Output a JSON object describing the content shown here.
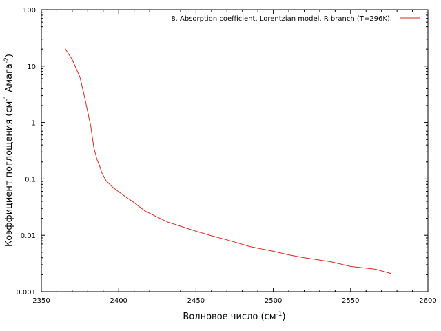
{
  "chart_data": {
    "type": "line",
    "title": "",
    "xlabel": "Волновое число (см",
    "xlabel_sup": "-1",
    "xlabel_end": ")",
    "ylabel": "Коэффициент поглощения (см",
    "ylabel_sup1": "-1",
    "ylabel_mid": " Амага",
    "ylabel_sup2": "-2",
    "ylabel_end": ")",
    "xlim": [
      2350,
      2600
    ],
    "ylim": [
      0.001,
      100
    ],
    "y_scale": "log",
    "grid": false,
    "legend_position": "top-right",
    "x_ticks": [
      "2350",
      "2400",
      "2450",
      "2500",
      "2550",
      "2600"
    ],
    "y_ticks": [
      "0.001",
      "0.01",
      "0.1",
      "1",
      "10",
      "100"
    ],
    "series": [
      {
        "name": "8. Absorption coefficient. Lorentzian model. R branch (T=296K).",
        "color": "#e3231b",
        "x": [
          2365,
          2370,
          2375,
          2378,
          2382,
          2384,
          2386,
          2388,
          2389,
          2392,
          2396,
          2400,
          2405,
          2410,
          2417,
          2425,
          2432,
          2440,
          2450,
          2460,
          2470,
          2485,
          2500,
          2510,
          2520,
          2537,
          2550,
          2566,
          2576
        ],
        "y": [
          21,
          13,
          6.3,
          2.8,
          0.85,
          0.35,
          0.22,
          0.16,
          0.13,
          0.092,
          0.072,
          0.059,
          0.047,
          0.038,
          0.027,
          0.021,
          0.017,
          0.0145,
          0.0118,
          0.0098,
          0.0083,
          0.0063,
          0.0052,
          0.0045,
          0.004,
          0.0034,
          0.0028,
          0.0025,
          0.0021
        ]
      }
    ]
  }
}
